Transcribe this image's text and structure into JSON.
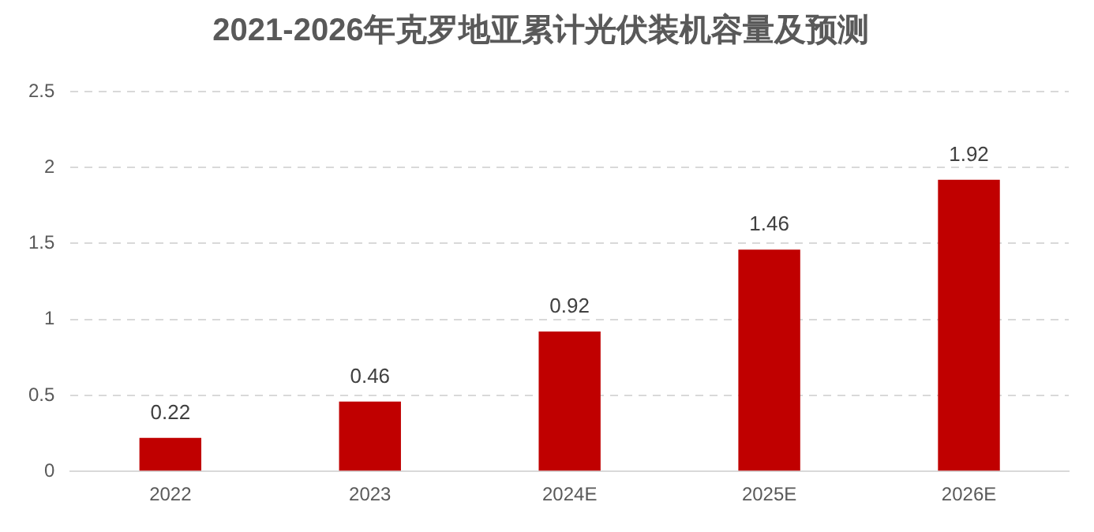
{
  "chart_data": {
    "type": "bar",
    "title": "2021-2026年克罗地亚累计光伏装机容量及预测",
    "categories": [
      "2022",
      "2023",
      "2024E",
      "2025E",
      "2026E"
    ],
    "values": [
      0.22,
      0.46,
      0.92,
      1.46,
      1.92
    ],
    "color": "#c00000",
    "ylim": [
      0,
      2.5
    ],
    "yticks": [
      0,
      0.5,
      1,
      1.5,
      2,
      2.5
    ],
    "grid": "y",
    "data_labels": true
  }
}
